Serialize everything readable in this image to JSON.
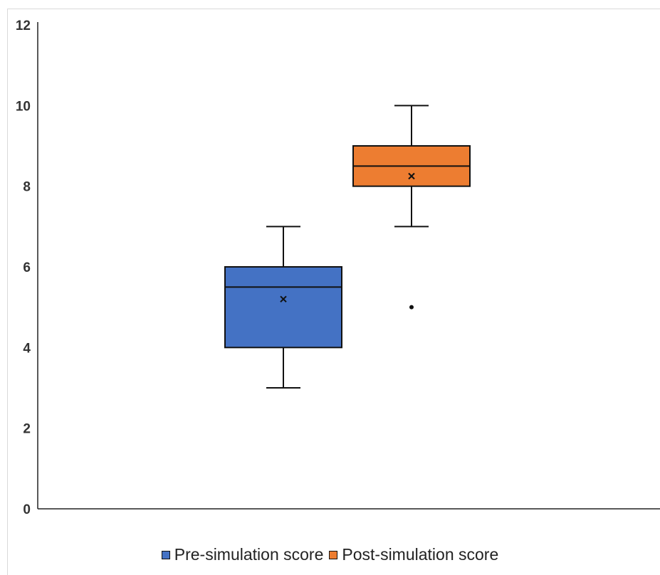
{
  "chart_data": {
    "type": "box",
    "title": "",
    "xlabel": "",
    "ylabel": "",
    "ylim": [
      0,
      12
    ],
    "yticks": [
      0,
      2,
      4,
      6,
      8,
      10,
      12
    ],
    "ytick_labels": [
      "0",
      "2",
      "4",
      "6",
      "8",
      "10",
      "12"
    ],
    "grid": false,
    "legend_position": "bottom",
    "series": [
      {
        "name": "Pre-simulation score",
        "color": "#4472c4",
        "min": 3,
        "q1": 4,
        "median": 5.5,
        "q3": 6,
        "max": 7,
        "mean": 5.2,
        "outliers": []
      },
      {
        "name": "Post-simulation score",
        "color": "#ed7d31",
        "min": 7,
        "q1": 8,
        "median": 8.5,
        "q3": 9,
        "max": 10,
        "mean": 8.25,
        "outliers": [
          5
        ]
      }
    ]
  }
}
